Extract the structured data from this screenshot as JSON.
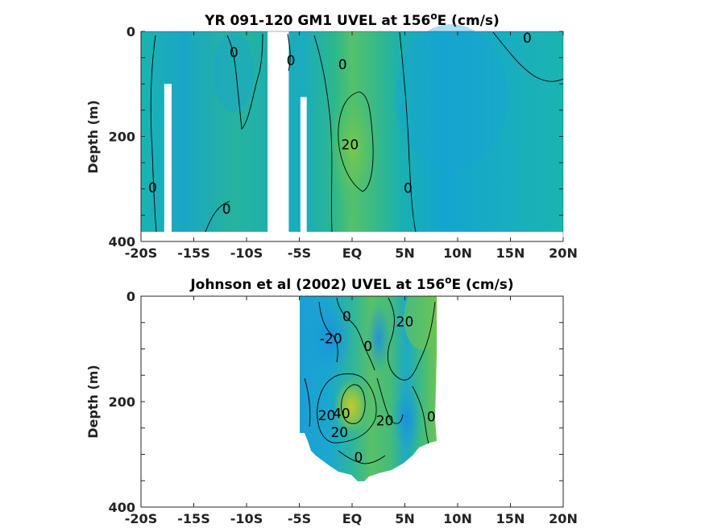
{
  "chart_data": [
    {
      "type": "heatmap",
      "title": "YR 091-120 GM1 UVEL at 156",
      "title_sup": "o",
      "title_tail": "E (cm/s)",
      "ylabel": "Depth (m)",
      "xlabel": "",
      "xlim": [
        -20,
        20
      ],
      "ylim": [
        400,
        0
      ],
      "x_ticks": [
        -20,
        -15,
        -10,
        -5,
        0,
        5,
        10,
        15,
        20
      ],
      "x_tick_labels": [
        "-20S",
        "-15S",
        "-10S",
        "-5S",
        "EQ",
        "5N",
        "10N",
        "15N",
        "20N"
      ],
      "y_ticks": [
        0,
        200,
        400
      ],
      "y_tick_labels": [
        "0",
        "200",
        "400"
      ],
      "contour_labels": [
        {
          "text": "0",
          "x": -11.2,
          "y": 40
        },
        {
          "text": "0",
          "x": -5.8,
          "y": 55
        },
        {
          "text": "0",
          "x": -0.9,
          "y": 63
        },
        {
          "text": "20",
          "x": -0.2,
          "y": 215
        },
        {
          "text": "0",
          "x": 5.3,
          "y": 298
        },
        {
          "text": "0",
          "x": -18.9,
          "y": 297
        },
        {
          "text": "0",
          "x": -11.9,
          "y": 338
        },
        {
          "text": "0",
          "x": 16.6,
          "y": 12
        }
      ],
      "masked_regions": [
        {
          "x": [
            -17.8,
            -17.1
          ],
          "y": [
            100,
            400
          ]
        },
        {
          "x": [
            -8.0,
            -6.0
          ],
          "y": [
            0,
            400
          ]
        },
        {
          "x": [
            -4.9,
            -4.3
          ],
          "y": [
            125,
            400
          ]
        },
        {
          "x": [
            -20,
            20
          ],
          "y": [
            388,
            400
          ]
        }
      ]
    },
    {
      "type": "heatmap",
      "title": "Johnson et al (2002) UVEL at 156",
      "title_sup": "o",
      "title_tail": "E (cm/s)",
      "ylabel": "Depth (m)",
      "xlabel": "",
      "xlim": [
        -20,
        20
      ],
      "ylim": [
        400,
        0
      ],
      "x_ticks": [
        -20,
        -15,
        -10,
        -5,
        0,
        5,
        10,
        15,
        20
      ],
      "x_tick_labels": [
        "-20S",
        "-15S",
        "-10S",
        "-5S",
        "EQ",
        "5N",
        "10N",
        "15N",
        "20N"
      ],
      "y_ticks": [
        0,
        200,
        400
      ],
      "y_tick_labels": [
        "0",
        "200",
        "400"
      ],
      "data_extent_x": [
        -5,
        8
      ],
      "contour_labels": [
        {
          "text": "0",
          "x": -0.5,
          "y": 38
        },
        {
          "text": "-20",
          "x": -2.0,
          "y": 80
        },
        {
          "text": "0",
          "x": 1.5,
          "y": 95
        },
        {
          "text": "20",
          "x": 5.0,
          "y": 48
        },
        {
          "text": "20",
          "x": -2.4,
          "y": 226
        },
        {
          "text": "40",
          "x": -1.0,
          "y": 222
        },
        {
          "text": "20",
          "x": -1.2,
          "y": 258
        },
        {
          "text": "20",
          "x": 3.1,
          "y": 236
        },
        {
          "text": "0",
          "x": 7.5,
          "y": 228
        },
        {
          "text": "0",
          "x": 0.6,
          "y": 305
        }
      ]
    }
  ]
}
